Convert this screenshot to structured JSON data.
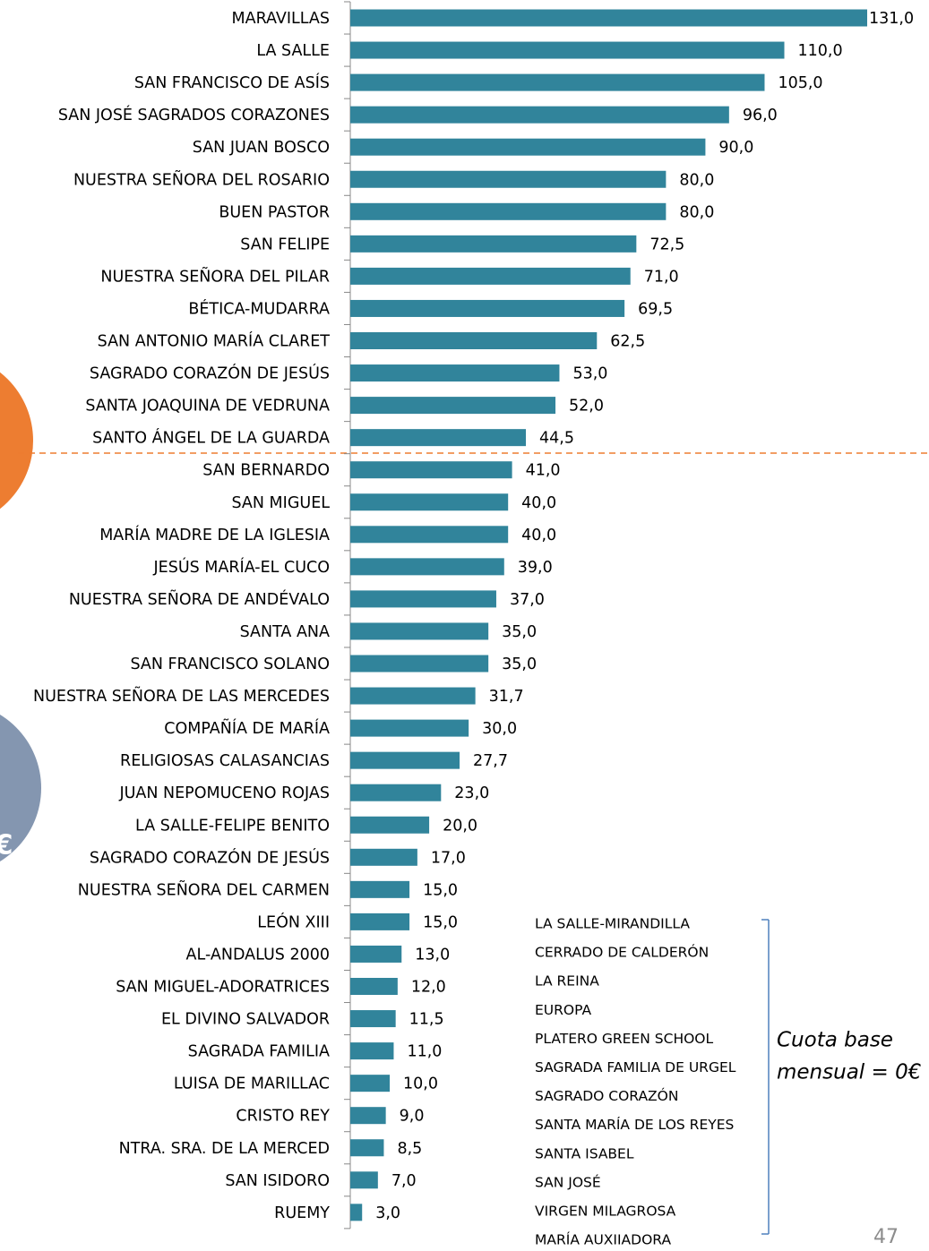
{
  "chart_data": {
    "type": "bar",
    "orientation": "horizontal",
    "categories": [
      "MARAVILLAS",
      "LA SALLE",
      "SAN FRANCISCO DE ASÍS",
      "SAN JOSÉ SAGRADOS CORAZONES",
      "SAN JUAN BOSCO",
      "NUESTRA SEÑORA DEL ROSARIO",
      "BUEN PASTOR",
      "SAN FELIPE",
      "NUESTRA SEÑORA DEL PILAR",
      "BÉTICA-MUDARRA",
      "SAN ANTONIO MARÍA CLARET",
      "SAGRADO CORAZÓN DE JESÚS",
      "SANTA JOAQUINA DE VEDRUNA",
      "SANTO ÁNGEL DE LA GUARDA",
      "SAN BERNARDO",
      "SAN MIGUEL",
      "MARÍA MADRE DE LA IGLESIA",
      "JESÚS MARÍA-EL CUCO",
      "NUESTRA SEÑORA DE ANDÉVALO",
      "SANTA ANA",
      "SAN FRANCISCO SOLANO",
      "NUESTRA SEÑORA DE LAS MERCEDES",
      "COMPAÑÍA DE MARÍA",
      "RELIGIOSAS CALASANCIAS",
      "JUAN NEPOMUCENO ROJAS",
      "LA SALLE-FELIPE BENITO",
      "SAGRADO CORAZÓN DE JESÚS",
      "NUESTRA SEÑORA DEL CARMEN",
      "LEÓN XIII",
      "AL-ANDALUS 2000",
      "SAN MIGUEL-ADORATRICES",
      "EL DIVINO SALVADOR",
      "SAGRADA FAMILIA",
      "LUISA DE MARILLAC",
      "CRISTO REY",
      "NTRA. SRA. DE LA MERCED",
      "SAN ISIDORO",
      "RUEMY"
    ],
    "values": [
      131,
      110,
      105,
      96,
      90,
      80,
      80,
      72.5,
      71,
      69.5,
      62.5,
      53,
      52,
      44.5,
      41,
      40,
      40,
      39,
      37,
      35,
      35,
      31.7,
      30,
      27.7,
      23,
      20,
      17,
      15,
      15,
      13,
      12,
      11.5,
      11,
      10,
      9,
      8.5,
      7,
      3
    ],
    "value_labels": [
      "131,0",
      "110,0",
      "105,0",
      "96,0",
      "90,0",
      "80,0",
      "80,0",
      "72,5",
      "71,0",
      "69,5",
      "62,5",
      "53,0",
      "52,0",
      "44,5",
      "41,0",
      "40,0",
      "40,0",
      "39,0",
      "37,0",
      "35,0",
      "35,0",
      "31,7",
      "30,0",
      "27,7",
      "23,0",
      "20,0",
      "17,0",
      "15,0",
      "15,0",
      "13,0",
      "12,0",
      "11,5",
      "11,0",
      "10,0",
      "9,0",
      "8,5",
      "7,0",
      "3,0"
    ],
    "color": "#31849b",
    "xlim": [
      0,
      131
    ]
  },
  "zero_quota_schools": [
    "LA SALLE-MIRANDILLA",
    "CERRADO DE CALDERÓN",
    "LA REINA",
    "EUROPA",
    "PLATERO GREEN SCHOOL",
    "SAGRADA FAMILIA DE URGEL",
    "SAGRADO CORAZÓN",
    "SANTA MARÍA DE LOS REYES",
    "SANTA ISABEL",
    "SAN JOSÉ",
    "VIRGEN MILAGROSA",
    "MARÍA AUXIIADORA"
  ],
  "annotation": [
    "Cuota base",
    "mensual = 0€"
  ],
  "side_label": "€",
  "page_number": "47"
}
